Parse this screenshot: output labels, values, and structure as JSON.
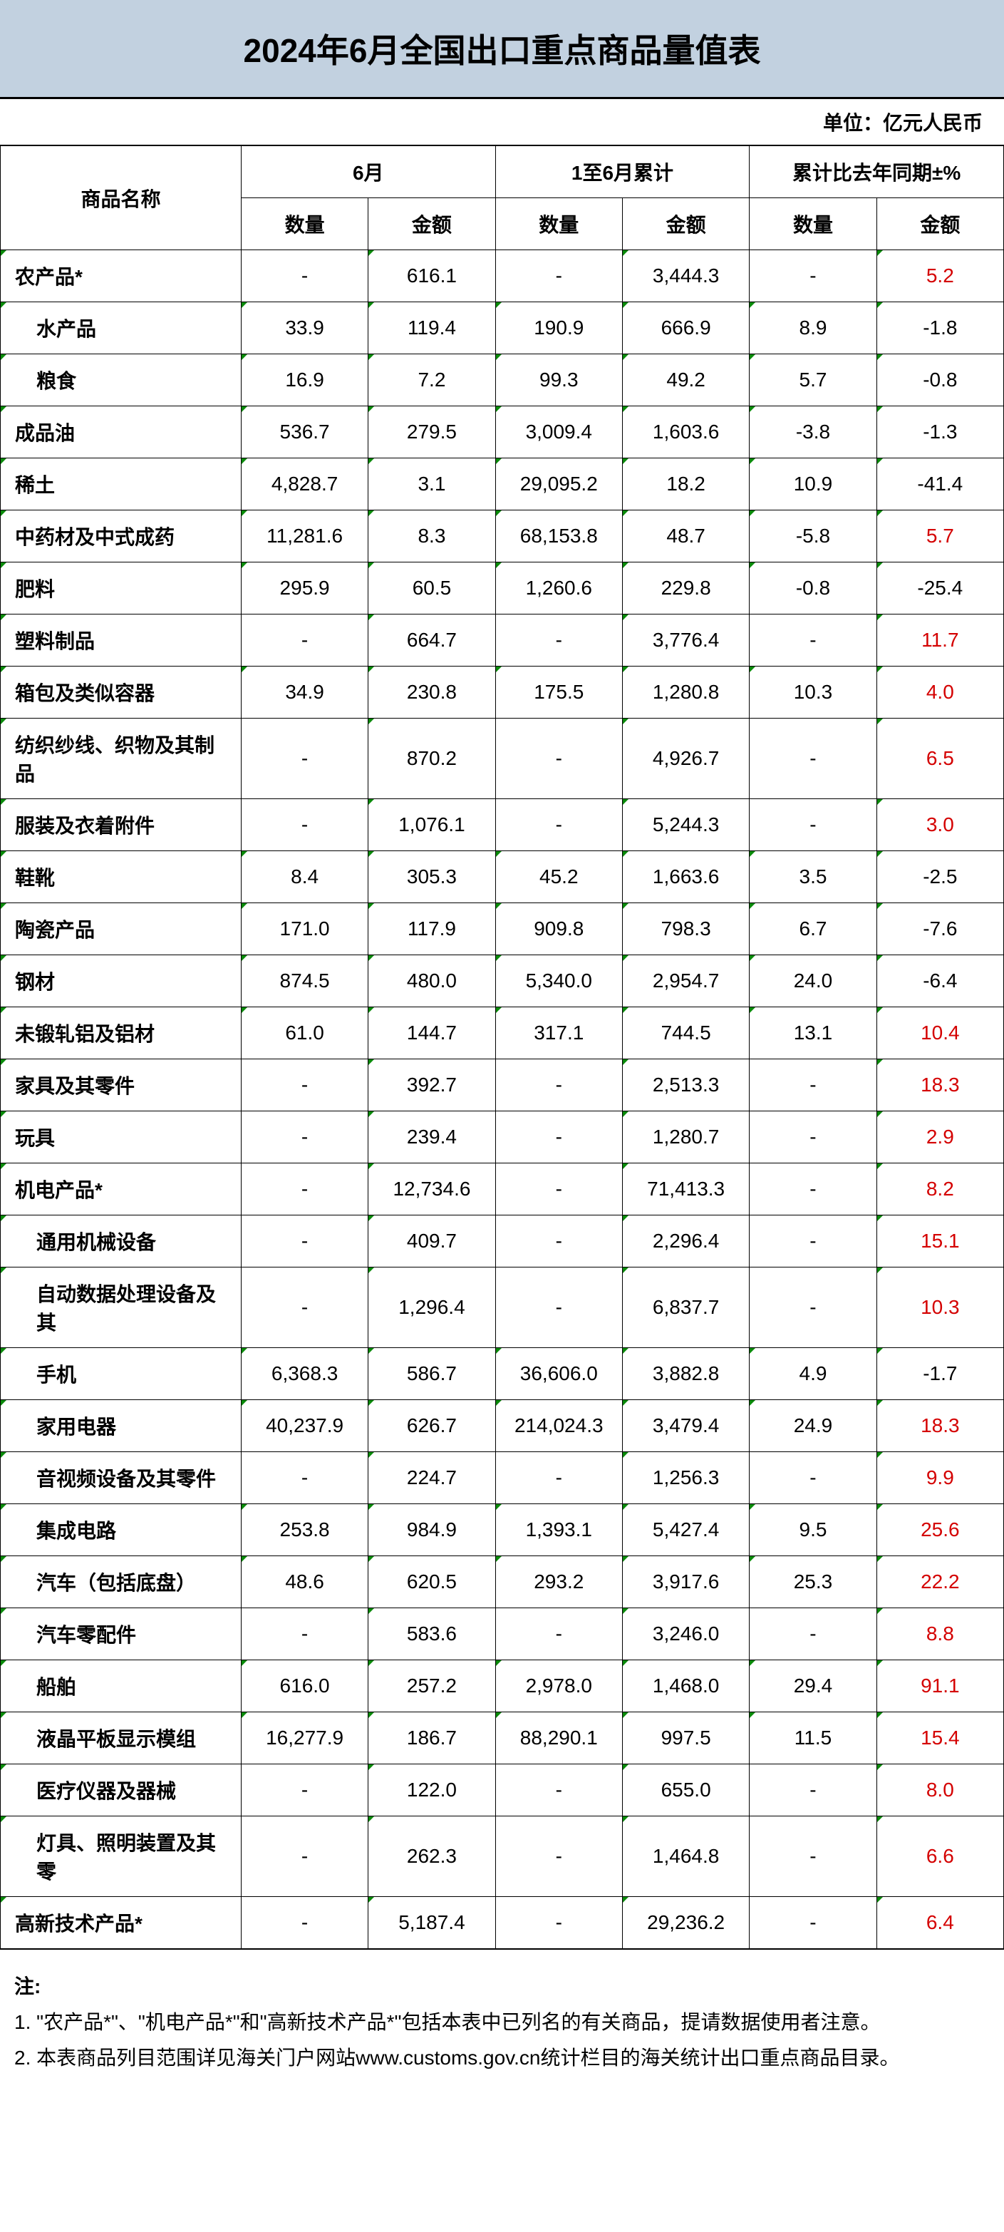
{
  "title": "2024年6月全国出口重点商品量值表",
  "unit": "单位：亿元人民币",
  "headers": {
    "name": "商品名称",
    "group1": "6月",
    "group2": "1至6月累计",
    "group3": "累计比去年同期±%",
    "qty": "数量",
    "amt": "金额"
  },
  "rows": [
    {
      "name": "农产品*",
      "indent": 0,
      "v": [
        "-",
        "616.1",
        "-",
        "3,444.3",
        "-",
        "5.2"
      ],
      "red": [
        false,
        false,
        false,
        false,
        false,
        true
      ]
    },
    {
      "name": "水产品",
      "indent": 1,
      "v": [
        "33.9",
        "119.4",
        "190.9",
        "666.9",
        "8.9",
        "-1.8"
      ],
      "red": [
        false,
        false,
        false,
        false,
        false,
        false
      ]
    },
    {
      "name": "粮食",
      "indent": 1,
      "v": [
        "16.9",
        "7.2",
        "99.3",
        "49.2",
        "5.7",
        "-0.8"
      ],
      "red": [
        false,
        false,
        false,
        false,
        false,
        false
      ]
    },
    {
      "name": "成品油",
      "indent": 0,
      "v": [
        "536.7",
        "279.5",
        "3,009.4",
        "1,603.6",
        "-3.8",
        "-1.3"
      ],
      "red": [
        false,
        false,
        false,
        false,
        false,
        false
      ]
    },
    {
      "name": "稀土",
      "indent": 0,
      "v": [
        "4,828.7",
        "3.1",
        "29,095.2",
        "18.2",
        "10.9",
        "-41.4"
      ],
      "red": [
        false,
        false,
        false,
        false,
        false,
        false
      ]
    },
    {
      "name": "中药材及中式成药",
      "indent": 0,
      "v": [
        "11,281.6",
        "8.3",
        "68,153.8",
        "48.7",
        "-5.8",
        "5.7"
      ],
      "red": [
        false,
        false,
        false,
        false,
        false,
        true
      ]
    },
    {
      "name": "肥料",
      "indent": 0,
      "v": [
        "295.9",
        "60.5",
        "1,260.6",
        "229.8",
        "-0.8",
        "-25.4"
      ],
      "red": [
        false,
        false,
        false,
        false,
        false,
        false
      ]
    },
    {
      "name": "塑料制品",
      "indent": 0,
      "v": [
        "-",
        "664.7",
        "-",
        "3,776.4",
        "-",
        "11.7"
      ],
      "red": [
        false,
        false,
        false,
        false,
        false,
        true
      ]
    },
    {
      "name": "箱包及类似容器",
      "indent": 0,
      "v": [
        "34.9",
        "230.8",
        "175.5",
        "1,280.8",
        "10.3",
        "4.0"
      ],
      "red": [
        false,
        false,
        false,
        false,
        false,
        true
      ]
    },
    {
      "name": "纺织纱线、织物及其制品",
      "indent": 0,
      "v": [
        "-",
        "870.2",
        "-",
        "4,926.7",
        "-",
        "6.5"
      ],
      "red": [
        false,
        false,
        false,
        false,
        false,
        true
      ]
    },
    {
      "name": "服装及衣着附件",
      "indent": 0,
      "v": [
        "-",
        "1,076.1",
        "-",
        "5,244.3",
        "-",
        "3.0"
      ],
      "red": [
        false,
        false,
        false,
        false,
        false,
        true
      ]
    },
    {
      "name": "鞋靴",
      "indent": 0,
      "v": [
        "8.4",
        "305.3",
        "45.2",
        "1,663.6",
        "3.5",
        "-2.5"
      ],
      "red": [
        false,
        false,
        false,
        false,
        false,
        false
      ]
    },
    {
      "name": "陶瓷产品",
      "indent": 0,
      "v": [
        "171.0",
        "117.9",
        "909.8",
        "798.3",
        "6.7",
        "-7.6"
      ],
      "red": [
        false,
        false,
        false,
        false,
        false,
        false
      ]
    },
    {
      "name": "钢材",
      "indent": 0,
      "v": [
        "874.5",
        "480.0",
        "5,340.0",
        "2,954.7",
        "24.0",
        "-6.4"
      ],
      "red": [
        false,
        false,
        false,
        false,
        false,
        false
      ]
    },
    {
      "name": "未锻轧铝及铝材",
      "indent": 0,
      "v": [
        "61.0",
        "144.7",
        "317.1",
        "744.5",
        "13.1",
        "10.4"
      ],
      "red": [
        false,
        false,
        false,
        false,
        false,
        true
      ]
    },
    {
      "name": "家具及其零件",
      "indent": 0,
      "v": [
        "-",
        "392.7",
        "-",
        "2,513.3",
        "-",
        "18.3"
      ],
      "red": [
        false,
        false,
        false,
        false,
        false,
        true
      ]
    },
    {
      "name": "玩具",
      "indent": 0,
      "v": [
        "-",
        "239.4",
        "-",
        "1,280.7",
        "-",
        "2.9"
      ],
      "red": [
        false,
        false,
        false,
        false,
        false,
        true
      ]
    },
    {
      "name": "机电产品*",
      "indent": 0,
      "v": [
        "-",
        "12,734.6",
        "-",
        "71,413.3",
        "-",
        "8.2"
      ],
      "red": [
        false,
        false,
        false,
        false,
        false,
        true
      ]
    },
    {
      "name": "通用机械设备",
      "indent": 1,
      "v": [
        "-",
        "409.7",
        "-",
        "2,296.4",
        "-",
        "15.1"
      ],
      "red": [
        false,
        false,
        false,
        false,
        false,
        true
      ]
    },
    {
      "name": "自动数据处理设备及其",
      "indent": 1,
      "v": [
        "-",
        "1,296.4",
        "-",
        "6,837.7",
        "-",
        "10.3"
      ],
      "red": [
        false,
        false,
        false,
        false,
        false,
        true
      ]
    },
    {
      "name": "手机",
      "indent": 1,
      "v": [
        "6,368.3",
        "586.7",
        "36,606.0",
        "3,882.8",
        "4.9",
        "-1.7"
      ],
      "red": [
        false,
        false,
        false,
        false,
        false,
        false
      ]
    },
    {
      "name": "家用电器",
      "indent": 1,
      "v": [
        "40,237.9",
        "626.7",
        "214,024.3",
        "3,479.4",
        "24.9",
        "18.3"
      ],
      "red": [
        false,
        false,
        false,
        false,
        false,
        true
      ]
    },
    {
      "name": "音视频设备及其零件",
      "indent": 1,
      "v": [
        "-",
        "224.7",
        "-",
        "1,256.3",
        "-",
        "9.9"
      ],
      "red": [
        false,
        false,
        false,
        false,
        false,
        true
      ]
    },
    {
      "name": "集成电路",
      "indent": 1,
      "v": [
        "253.8",
        "984.9",
        "1,393.1",
        "5,427.4",
        "9.5",
        "25.6"
      ],
      "red": [
        false,
        false,
        false,
        false,
        false,
        true
      ]
    },
    {
      "name": "汽车（包括底盘）",
      "indent": 1,
      "v": [
        "48.6",
        "620.5",
        "293.2",
        "3,917.6",
        "25.3",
        "22.2"
      ],
      "red": [
        false,
        false,
        false,
        false,
        false,
        true
      ]
    },
    {
      "name": "汽车零配件",
      "indent": 1,
      "v": [
        "-",
        "583.6",
        "-",
        "3,246.0",
        "-",
        "8.8"
      ],
      "red": [
        false,
        false,
        false,
        false,
        false,
        true
      ]
    },
    {
      "name": "船舶",
      "indent": 1,
      "v": [
        "616.0",
        "257.2",
        "2,978.0",
        "1,468.0",
        "29.4",
        "91.1"
      ],
      "red": [
        false,
        false,
        false,
        false,
        false,
        true
      ]
    },
    {
      "name": "液晶平板显示模组",
      "indent": 1,
      "v": [
        "16,277.9",
        "186.7",
        "88,290.1",
        "997.5",
        "11.5",
        "15.4"
      ],
      "red": [
        false,
        false,
        false,
        false,
        false,
        true
      ]
    },
    {
      "name": "医疗仪器及器械",
      "indent": 1,
      "v": [
        "-",
        "122.0",
        "-",
        "655.0",
        "-",
        "8.0"
      ],
      "red": [
        false,
        false,
        false,
        false,
        false,
        true
      ]
    },
    {
      "name": "灯具、照明装置及其零",
      "indent": 1,
      "v": [
        "-",
        "262.3",
        "-",
        "1,464.8",
        "-",
        "6.6"
      ],
      "red": [
        false,
        false,
        false,
        false,
        false,
        true
      ]
    },
    {
      "name": "高新技术产品*",
      "indent": 0,
      "v": [
        "-",
        "5,187.4",
        "-",
        "29,236.2",
        "-",
        "6.4"
      ],
      "red": [
        false,
        false,
        false,
        false,
        false,
        true
      ]
    }
  ],
  "notes": {
    "title": "注:",
    "lines": [
      "1. \"农产品*\"、\"机电产品*\"和\"高新技术产品*\"包括本表中已列名的有关商品，提请数据使用者注意。",
      "2. 本表商品列目范围详见海关门户网站www.customs.gov.cn统计栏目的海关统计出口重点商品目录。"
    ]
  },
  "styling": {
    "title_bg": "#c2d1e0",
    "title_fontsize": 46,
    "cell_fontsize": 28,
    "border_color": "#000000",
    "red_color": "#d40000",
    "marker_color": "#0a8a0a",
    "font_family": "Microsoft YaHei, SimSun, Arial, sans-serif"
  }
}
